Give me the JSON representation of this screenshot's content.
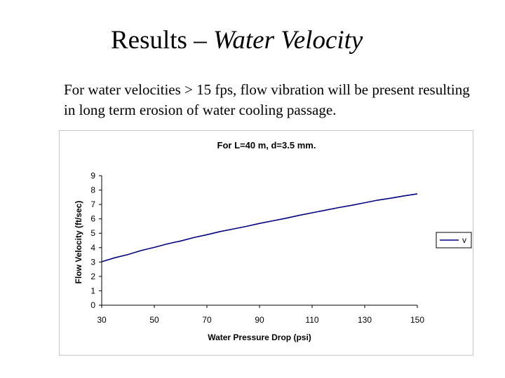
{
  "slide": {
    "title_plain": "Results – ",
    "title_italic": "Water Velocity",
    "body": "For water velocities > 15 fps, flow vibration will be present resulting in long term erosion of water cooling passage."
  },
  "chart_data": {
    "type": "line",
    "title": "For L=40 m, d=3.5 mm.",
    "xlabel": "Water Pressure Drop (psi)",
    "ylabel": "Flow Velocity (ft/sec)",
    "xlim": [
      30,
      150
    ],
    "ylim": [
      0,
      9
    ],
    "xticks": [
      30,
      50,
      70,
      90,
      110,
      130,
      150
    ],
    "yticks": [
      0,
      1,
      2,
      3,
      4,
      5,
      6,
      7,
      8,
      9
    ],
    "grid": false,
    "legend_position": "right",
    "series": [
      {
        "name": "v",
        "color": "#000080",
        "x": [
          30,
          35,
          40,
          45,
          50,
          55,
          60,
          65,
          70,
          75,
          80,
          85,
          90,
          95,
          100,
          105,
          110,
          115,
          120,
          125,
          130,
          135,
          140,
          145,
          150
        ],
        "y": [
          3.02,
          3.3,
          3.52,
          3.8,
          4.02,
          4.26,
          4.46,
          4.7,
          4.9,
          5.12,
          5.3,
          5.48,
          5.68,
          5.86,
          6.04,
          6.24,
          6.42,
          6.6,
          6.78,
          6.94,
          7.12,
          7.3,
          7.44,
          7.6,
          7.74
        ]
      }
    ]
  }
}
